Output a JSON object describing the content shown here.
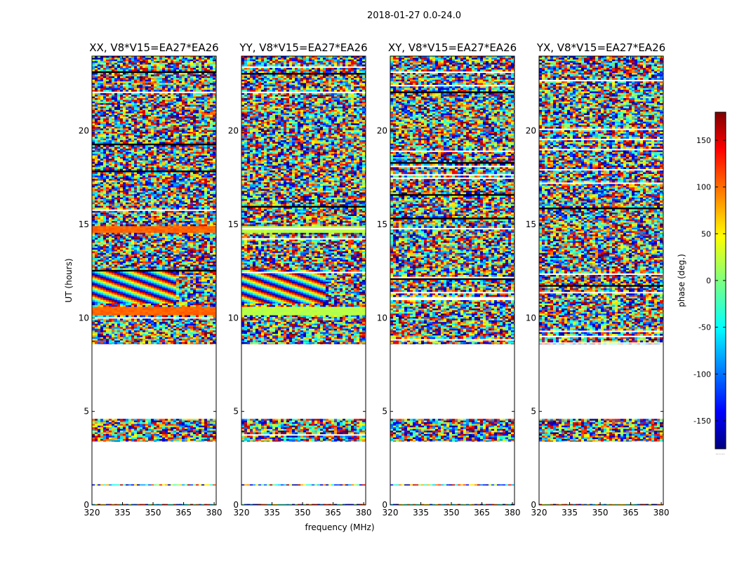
{
  "suptitle": "2018-01-27 0.0-24.0",
  "chart_data": {
    "type": "heatmap",
    "title": "2018-01-27 0.0-24.0",
    "xlabel": "frequency (MHz)",
    "ylabel": "UT (hours)",
    "xlim": [
      320,
      381
    ],
    "ylim": [
      0,
      24
    ],
    "xticks": [
      "320",
      "335",
      "350",
      "365",
      "380"
    ],
    "xtick_values": [
      320,
      335,
      350,
      365,
      380
    ],
    "yticks": [
      "0",
      "5",
      "10",
      "15",
      "20"
    ],
    "ytick_values": [
      0,
      5,
      10,
      15,
      20
    ],
    "panels": [
      {
        "title": "XX, V8*V15=EA27*EA26",
        "pol": "XX",
        "band_phase": 100
      },
      {
        "title": "YY, V8*V15=EA27*EA26",
        "pol": "YY",
        "band_phase": 20
      },
      {
        "title": "XY, V8*V15=EA27*EA26",
        "pol": "XY",
        "band_phase": null
      },
      {
        "title": "YX, V8*V15=EA27*EA26",
        "pol": "YX",
        "band_phase": null
      }
    ],
    "data_segments_ut": [
      [
        0.0,
        0.05
      ],
      [
        1.05,
        1.1
      ],
      [
        3.4,
        4.6
      ],
      [
        8.6,
        24.0
      ]
    ],
    "colorbar": {
      "label": "phase (deg.)",
      "range": [
        -180,
        180
      ],
      "colormap": "jet",
      "ticks": [
        "-150",
        "-100",
        "-50",
        "0",
        "50",
        "100",
        "150"
      ],
      "tick_values": [
        -150,
        -100,
        -50,
        0,
        50,
        100,
        150
      ],
      "offset_label": "......"
    }
  }
}
